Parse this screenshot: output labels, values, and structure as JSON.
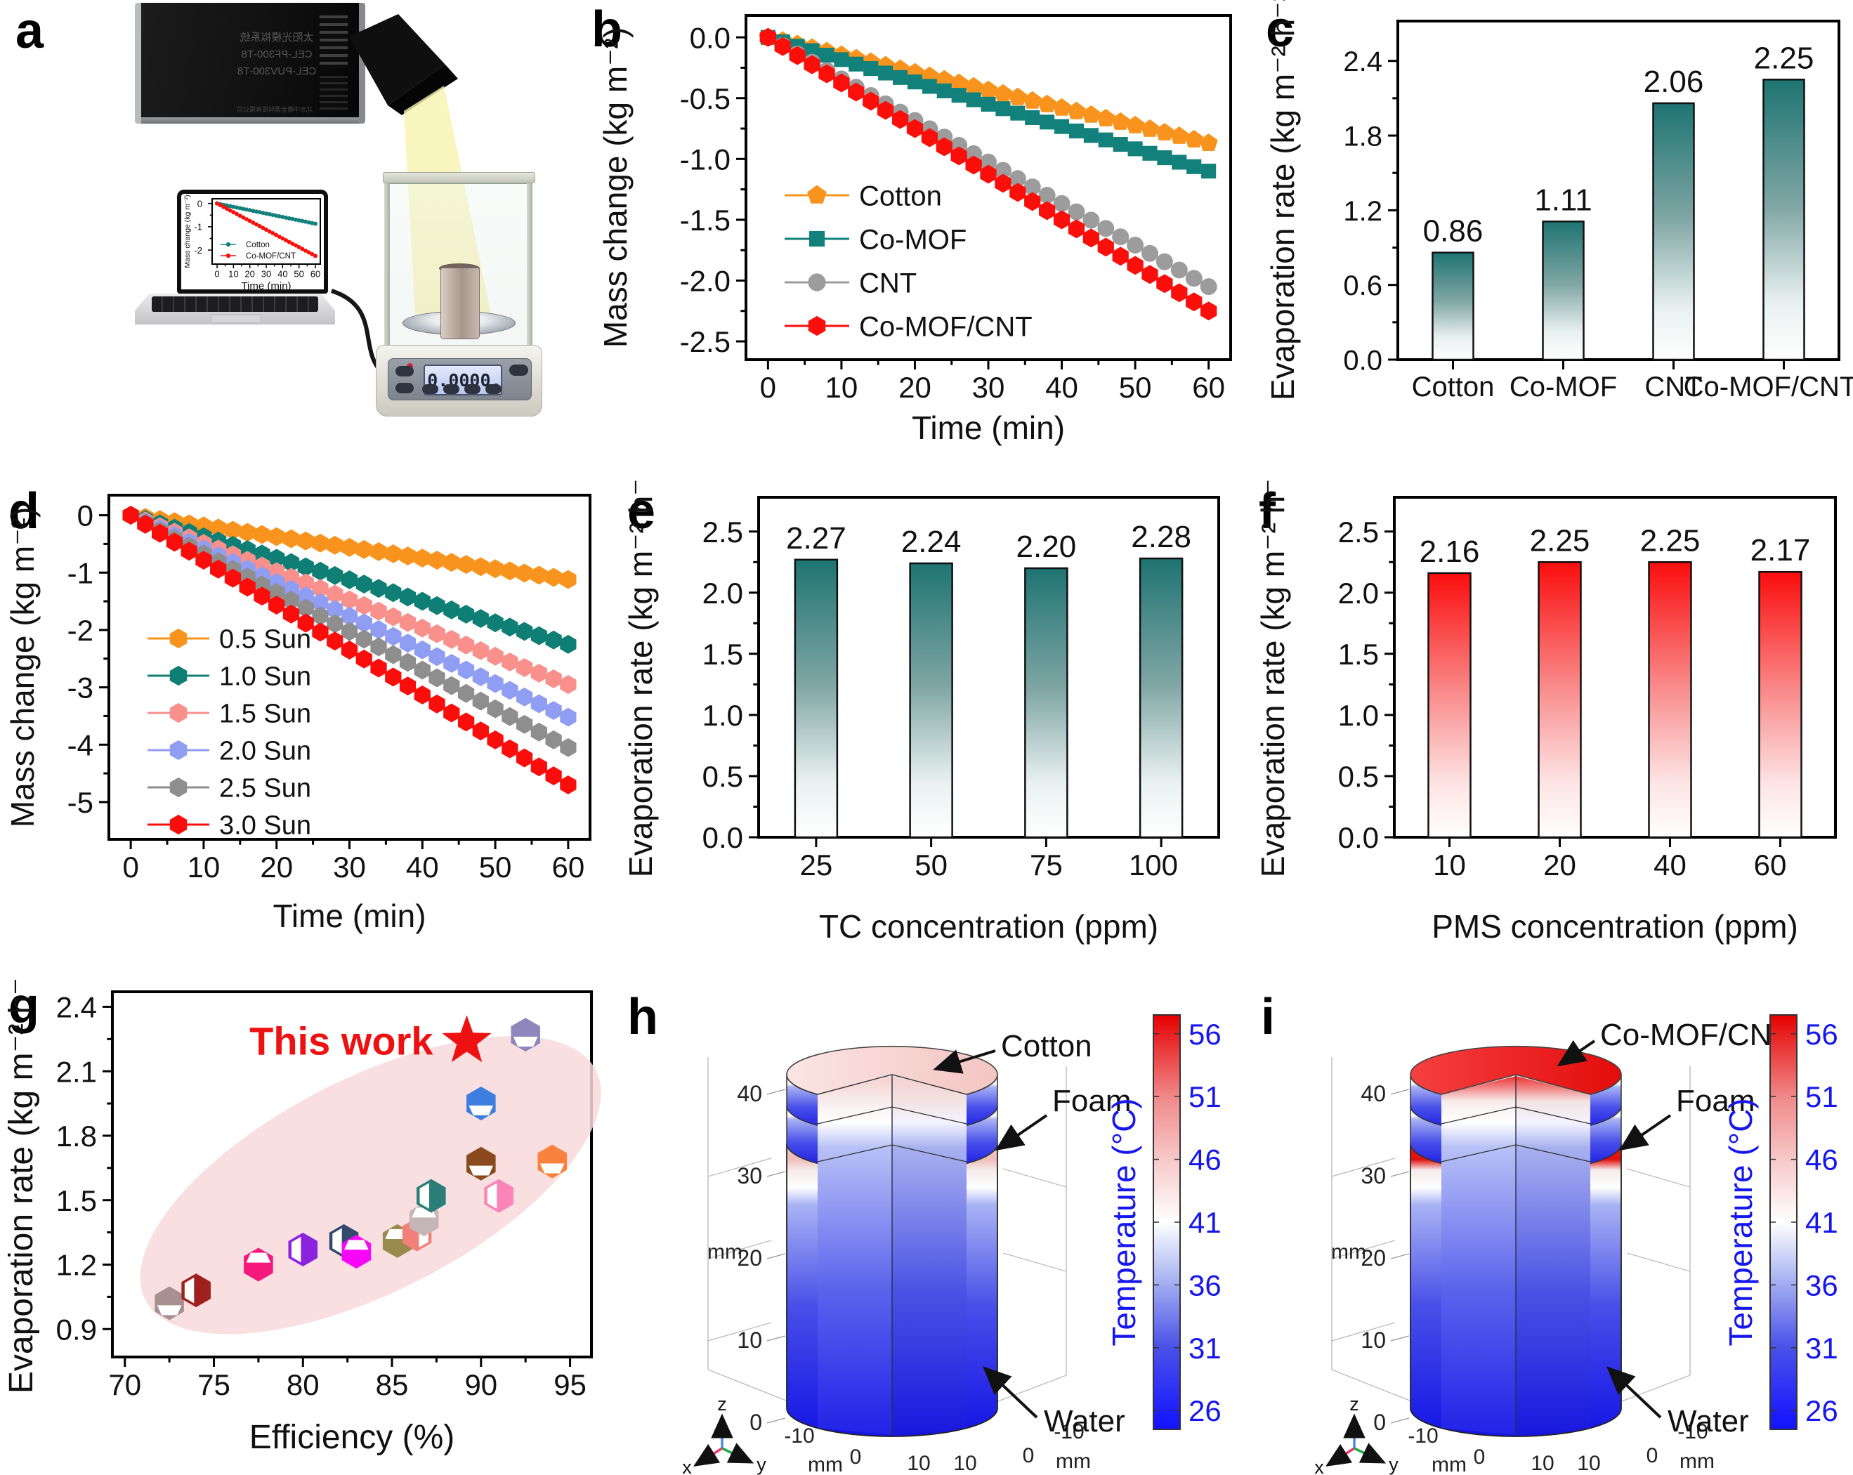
{
  "panel_labels": {
    "a": "a",
    "b": "b",
    "c": "c",
    "d": "d",
    "e": "e",
    "f": "f",
    "g": "g",
    "h": "h",
    "i": "i"
  },
  "panel_a": {
    "device_label_lines": [
      "太阳光模拟系统",
      "CEL-PF300-T8",
      "CEL-PUV300-T8"
    ],
    "device_footer": "北京中教金源科技有限公司",
    "balance_reading": "0.0000",
    "balance_unit": "g"
  },
  "chart_data": {
    "a_inset": {
      "type": "line",
      "xlabel": "Time (min)",
      "ylabel": "Mass change (kg m⁻²)",
      "x_ticks": [
        0,
        10,
        20,
        30,
        40,
        50,
        60
      ],
      "xlim": [
        -3,
        63
      ],
      "y_ticks": [
        0,
        -1,
        -2
      ],
      "y_tick_labels": [
        "0",
        "-1",
        "-2"
      ],
      "ylim": [
        -2.6,
        0.2
      ],
      "t_step_min": 2,
      "series": [
        {
          "name": "Cotton",
          "color": "#12807B",
          "marker": "circle",
          "end_value": -0.87
        },
        {
          "name": "Co-MOF/CNT",
          "color": "#FB0F0B",
          "marker": "circle",
          "end_value": -2.25
        }
      ]
    },
    "b": {
      "type": "line",
      "xlabel": "Time (min)",
      "ylabel": "Mass change (kg m⁻²)",
      "x_ticks": [
        0,
        10,
        20,
        30,
        40,
        50,
        60
      ],
      "xlim": [
        -3,
        63
      ],
      "y_ticks": [
        0,
        -0.5,
        -1,
        -1.5,
        -2,
        -2.5
      ],
      "y_tick_labels": [
        "0.0",
        "-0.5",
        "-1.0",
        "-1.5",
        "-2.0",
        "-2.5"
      ],
      "ylim": [
        -2.65,
        0.18
      ],
      "t_step_min": 2,
      "series": [
        {
          "name": "Cotton",
          "color": "#F8941D",
          "marker": "pentagon",
          "end_value": -0.87,
          "values_at_10min": [
            0,
            -0.15,
            -0.29,
            -0.44,
            -0.58,
            -0.73,
            -0.87
          ]
        },
        {
          "name": "Co-MOF",
          "color": "#12807B",
          "marker": "square",
          "end_value": -1.1,
          "values_at_10min": [
            0,
            -0.18,
            -0.37,
            -0.55,
            -0.73,
            -0.92,
            -1.1
          ]
        },
        {
          "name": "CNT",
          "color": "#9C9C9C",
          "marker": "circle",
          "end_value": -2.05,
          "values_at_10min": [
            0,
            -0.34,
            -0.68,
            -1.03,
            -1.37,
            -1.71,
            -2.05
          ]
        },
        {
          "name": "Co-MOF/CNT",
          "color": "#FB0F0B",
          "marker": "hexagon",
          "end_value": -2.25,
          "values_at_10min": [
            0,
            -0.38,
            -0.75,
            -1.13,
            -1.5,
            -1.88,
            -2.25
          ]
        }
      ]
    },
    "c": {
      "type": "bar",
      "categories": [
        "Cotton",
        "Co-MOF",
        "CNT",
        "Co-MOF/CNT"
      ],
      "values": [
        0.86,
        1.11,
        2.06,
        2.25
      ],
      "ylabel": "Evaporation rate (kg m⁻² h⁻¹)",
      "y_ticks": [
        0,
        0.6,
        1.2,
        1.8,
        2.4
      ],
      "y_tick_labels": [
        "0.0",
        "0.6",
        "1.2",
        "1.8",
        "2.4"
      ],
      "ylim": [
        0,
        2.72
      ],
      "bar_gradient": [
        "#1E7472",
        "#7FA6A4",
        "#E9F1F0",
        "#FFFFFF"
      ]
    },
    "d": {
      "type": "line",
      "xlabel": "Time (min)",
      "ylabel": "Mass change (kg m⁻²)",
      "x_ticks": [
        0,
        10,
        20,
        30,
        40,
        50,
        60
      ],
      "xlim": [
        -3,
        63
      ],
      "y_ticks": [
        0,
        -1,
        -2,
        -3,
        -4,
        -5
      ],
      "y_tick_labels": [
        "0",
        "-1",
        "-2",
        "-3",
        "-4",
        "-5"
      ],
      "ylim": [
        -5.65,
        0.35
      ],
      "t_step_min": 2,
      "series": [
        {
          "name": "0.5 Sun",
          "color": "#F8941D",
          "marker": "hexagon",
          "end_value": -1.12,
          "values_at_10min": [
            0,
            -0.19,
            -0.37,
            -0.56,
            -0.75,
            -0.93,
            -1.12
          ]
        },
        {
          "name": "1.0 Sun",
          "color": "#0F7E74",
          "marker": "hexagon",
          "end_value": -2.25,
          "values_at_10min": [
            0,
            -0.38,
            -0.75,
            -1.13,
            -1.5,
            -1.88,
            -2.25
          ]
        },
        {
          "name": "1.5 Sun",
          "color": "#F9908C",
          "marker": "hexagon",
          "end_value": -2.95,
          "values_at_10min": [
            0,
            -0.49,
            -0.98,
            -1.48,
            -1.97,
            -2.46,
            -2.95
          ]
        },
        {
          "name": "2.0 Sun",
          "color": "#8F9DF2",
          "marker": "hexagon",
          "end_value": -3.52,
          "values_at_10min": [
            0,
            -0.59,
            -1.17,
            -1.76,
            -2.35,
            -2.93,
            -3.52
          ]
        },
        {
          "name": "2.5 Sun",
          "color": "#8E8E8E",
          "marker": "hexagon",
          "end_value": -4.05,
          "values_at_10min": [
            0,
            -0.68,
            -1.35,
            -2.03,
            -2.7,
            -3.38,
            -4.05
          ]
        },
        {
          "name": "3.0 Sun",
          "color": "#FA0D0A",
          "marker": "hexagon",
          "end_value": -4.7,
          "values_at_10min": [
            0,
            -0.78,
            -1.57,
            -2.35,
            -3.13,
            -3.92,
            -4.7
          ]
        }
      ]
    },
    "e": {
      "type": "bar",
      "categories": [
        "25",
        "50",
        "75",
        "100"
      ],
      "values": [
        2.27,
        2.24,
        2.2,
        2.28
      ],
      "xlabel": "TC concentration (ppm)",
      "ylabel": "Evaporation rate (kg m⁻² h⁻¹)",
      "y_ticks": [
        0,
        0.5,
        1,
        1.5,
        2,
        2.5
      ],
      "y_tick_labels": [
        "0.0",
        "0.5",
        "1.0",
        "1.5",
        "2.0",
        "2.5"
      ],
      "ylim": [
        0,
        2.78
      ],
      "bar_gradient": [
        "#1E7472",
        "#7FA6A4",
        "#E9F1F0",
        "#FFFFFF"
      ]
    },
    "f": {
      "type": "bar",
      "categories": [
        "10",
        "20",
        "40",
        "60"
      ],
      "values": [
        2.16,
        2.25,
        2.25,
        2.17
      ],
      "xlabel": "PMS concentration (ppm)",
      "ylabel": "Evaporation rate (kg m⁻² h⁻¹)",
      "y_ticks": [
        0,
        0.5,
        1,
        1.5,
        2,
        2.5
      ],
      "y_tick_labels": [
        "0.0",
        "0.5",
        "1.0",
        "1.5",
        "2.0",
        "2.5"
      ],
      "ylim": [
        0,
        2.78
      ],
      "bar_gradient": [
        "#FB0D0D",
        "#F98A8A",
        "#FDE4E4",
        "#FFFFFF"
      ]
    },
    "g": {
      "type": "scatter",
      "xlabel": "Efficiency (%)",
      "ylabel": "Evaporation rate (kg m⁻² h⁻¹)",
      "x_ticks": [
        70,
        75,
        80,
        85,
        90,
        95
      ],
      "xlim": [
        69.3,
        96.2
      ],
      "y_ticks": [
        0.9,
        1.2,
        1.5,
        1.8,
        2.1,
        2.4
      ],
      "y_tick_labels": [
        "0.9",
        "1.2",
        "1.5",
        "1.8",
        "2.1",
        "2.4"
      ],
      "ylim": [
        0.77,
        2.47
      ],
      "points": [
        {
          "x": 72.5,
          "y": 1.02,
          "color": "#A89090",
          "open": "bottom"
        },
        {
          "x": 74.0,
          "y": 1.08,
          "color": "#A02020",
          "open": "left"
        },
        {
          "x": 77.5,
          "y": 1.2,
          "color": "#F5197E",
          "open": "top"
        },
        {
          "x": 80.0,
          "y": 1.27,
          "color": "#8B22DD",
          "open": "left"
        },
        {
          "x": 82.3,
          "y": 1.31,
          "color": "#35496E",
          "open": "left"
        },
        {
          "x": 83.0,
          "y": 1.26,
          "color": "#F806F8",
          "open": "top"
        },
        {
          "x": 85.3,
          "y": 1.31,
          "color": "#9A8A4D",
          "open": "top"
        },
        {
          "x": 86.4,
          "y": 1.34,
          "color": "#F08078",
          "open": "right"
        },
        {
          "x": 86.8,
          "y": 1.41,
          "color": "#C4B6B6",
          "open": "top"
        },
        {
          "x": 87.2,
          "y": 1.52,
          "color": "#2B7F78",
          "open": "left"
        },
        {
          "x": 91.0,
          "y": 1.52,
          "color": "#FB84B8",
          "open": "left"
        },
        {
          "x": 90.0,
          "y": 1.67,
          "color": "#8A4A1E",
          "open": "bottom"
        },
        {
          "x": 94.0,
          "y": 1.68,
          "color": "#F9823C",
          "open": "bottom"
        },
        {
          "x": 90.0,
          "y": 1.95,
          "color": "#3E7EDE",
          "open": "bottom"
        },
        {
          "x": 92.5,
          "y": 2.27,
          "color": "#8F86BE",
          "open": "bottom"
        }
      ],
      "this_work": {
        "label": "This work",
        "x": 89.2,
        "y": 2.24,
        "color": "#EE1111"
      },
      "highlight_ellipse": {
        "color": "#F9D9DC"
      }
    },
    "h": {
      "type": "3d-temperature-simulation",
      "sample_label": "Cotton",
      "layer_labels": [
        "Cotton",
        "Foam",
        "Water"
      ],
      "z_ticks": [
        0,
        10,
        20,
        30,
        40
      ],
      "z_unit": "mm",
      "xy_ticks": [
        -10,
        0,
        10
      ],
      "xy_unit": "mm",
      "triad_labels": {
        "x": "x",
        "y": "y",
        "z": "z"
      },
      "colorbar": {
        "title": "Temperature (°C)",
        "ticks": [
          56,
          51,
          46,
          41,
          36,
          31,
          26
        ],
        "label_color": "#1616EE"
      },
      "top_surface_temp_c": 46
    },
    "i": {
      "type": "3d-temperature-simulation",
      "sample_label": "Co-MOF/CNT",
      "layer_labels": [
        "Co-MOF/CNT",
        "Foam",
        "Water"
      ],
      "z_ticks": [
        0,
        10,
        20,
        30,
        40
      ],
      "z_unit": "mm",
      "xy_ticks": [
        -10,
        0,
        10
      ],
      "xy_unit": "mm",
      "triad_labels": {
        "x": "x",
        "y": "y",
        "z": "z"
      },
      "colorbar": {
        "title": "Temperature (°C)",
        "ticks": [
          56,
          51,
          46,
          41,
          36,
          31,
          26
        ],
        "label_color": "#1616EE"
      },
      "top_surface_temp_c": 56
    }
  }
}
